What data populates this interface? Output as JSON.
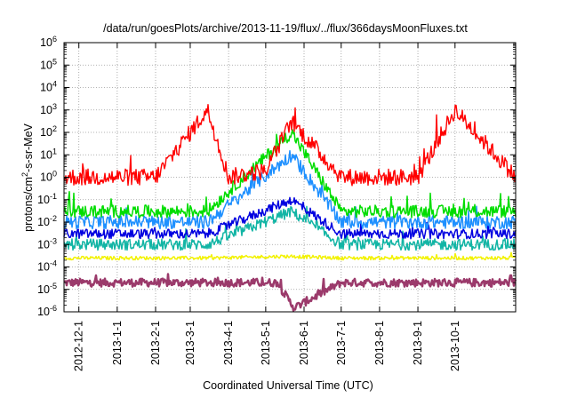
{
  "chart_data": {
    "type": "line",
    "title": "/data/run/goesPlots/archive/2013-11-19/flux/../flux/366daysMoonFluxes.txt",
    "xlabel": "Coordinated Universal Time (UTC)",
    "ylabel": "protons/cm²-s-sr-MeV",
    "ylabel_parts": {
      "before": "protons/cm",
      "sup": "2",
      "after": "-s-sr-MeV"
    },
    "y_scale": "log",
    "ylim": [
      1e-06,
      1000000.0
    ],
    "y_ticks": [
      {
        "value": 1e-06,
        "base": "10",
        "exp": "-6"
      },
      {
        "value": 1e-05,
        "base": "10",
        "exp": "-5"
      },
      {
        "value": 0.0001,
        "base": "10",
        "exp": "-4"
      },
      {
        "value": 0.001,
        "base": "10",
        "exp": "-3"
      },
      {
        "value": 0.01,
        "base": "10",
        "exp": "-2"
      },
      {
        "value": 0.1,
        "base": "10",
        "exp": "-1"
      },
      {
        "value": 1.0,
        "base": "10",
        "exp": "0"
      },
      {
        "value": 10.0,
        "base": "10",
        "exp": "1"
      },
      {
        "value": 100.0,
        "base": "10",
        "exp": "2"
      },
      {
        "value": 1000.0,
        "base": "10",
        "exp": "3"
      },
      {
        "value": 10000.0,
        "base": "10",
        "exp": "4"
      },
      {
        "value": 100000.0,
        "base": "10",
        "exp": "5"
      },
      {
        "value": 1000000.0,
        "base": "10",
        "exp": "6"
      }
    ],
    "xlim": [
      "2012-11-19",
      "2013-11-19"
    ],
    "x_ticks": [
      "2012-12-1",
      "2013-1-1",
      "2013-2-1",
      "2013-3-1",
      "2013-4-1",
      "2013-5-1",
      "2013-6-1",
      "2013-7-1",
      "2013-8-1",
      "2013-9-1",
      "2013-10-1"
    ],
    "grid": true,
    "legend": "none",
    "series": [
      {
        "color": "#9b3a6b",
        "x": [
          "2012-11-19",
          "2013-1-15",
          "2013-3-15",
          "2013-5-10",
          "2013-5-24",
          "2013-7-1",
          "2013-9-1",
          "2013-11-19"
        ],
        "y": [
          2e-05,
          2e-05,
          2e-05,
          2e-05,
          1.5e-06,
          2e-05,
          2e-05,
          2e-05
        ]
      },
      {
        "color": "#f2f200",
        "x": [
          "2012-11-19",
          "2013-1-15",
          "2013-3-15",
          "2013-5-20",
          "2013-7-1",
          "2013-9-1",
          "2013-11-19"
        ],
        "y": [
          0.00025,
          0.00025,
          0.00025,
          0.0003,
          0.00025,
          0.00025,
          0.00025
        ]
      },
      {
        "color": "#12b5a5",
        "x": [
          "2012-11-19",
          "2013-1-15",
          "2013-3-15",
          "2013-5-22",
          "2013-7-1",
          "2013-9-1",
          "2013-11-19"
        ],
        "y": [
          0.001,
          0.001,
          0.001,
          0.03,
          0.001,
          0.001,
          0.001
        ]
      },
      {
        "color": "#0000e0",
        "x": [
          "2012-11-19",
          "2013-1-15",
          "2013-3-15",
          "2013-5-22",
          "2013-7-1",
          "2013-9-1",
          "2013-11-19"
        ],
        "y": [
          0.003,
          0.003,
          0.003,
          0.1,
          0.003,
          0.003,
          0.003
        ]
      },
      {
        "color": "#1e90ff",
        "x": [
          "2012-11-19",
          "2013-1-15",
          "2013-3-15",
          "2013-5-22",
          "2013-7-1",
          "2013-9-1",
          "2013-11-19"
        ],
        "y": [
          0.01,
          0.01,
          0.01,
          10.0,
          0.01,
          0.01,
          0.01
        ]
      },
      {
        "color": "#00dd00",
        "x": [
          "2012-11-19",
          "2013-1-15",
          "2013-3-15",
          "2013-5-22",
          "2013-7-1",
          "2013-9-1",
          "2013-11-19"
        ],
        "y": [
          0.03,
          0.03,
          0.03,
          100.0,
          0.03,
          0.03,
          0.03
        ]
      },
      {
        "color": "#ff0000",
        "x": [
          "2012-11-19",
          "2012-12-1",
          "2013-1-1",
          "2013-2-1",
          "2013-3-15",
          "2013-4-1",
          "2013-5-1",
          "2013-5-22",
          "2013-6-15",
          "2013-7-1",
          "2013-8-1",
          "2013-9-1",
          "2013-10-1",
          "2013-11-19"
        ],
        "y": [
          1,
          1,
          1,
          1,
          1000.0,
          1,
          2,
          300.0,
          10,
          1,
          1,
          1,
          1000.0,
          1
        ]
      }
    ]
  }
}
